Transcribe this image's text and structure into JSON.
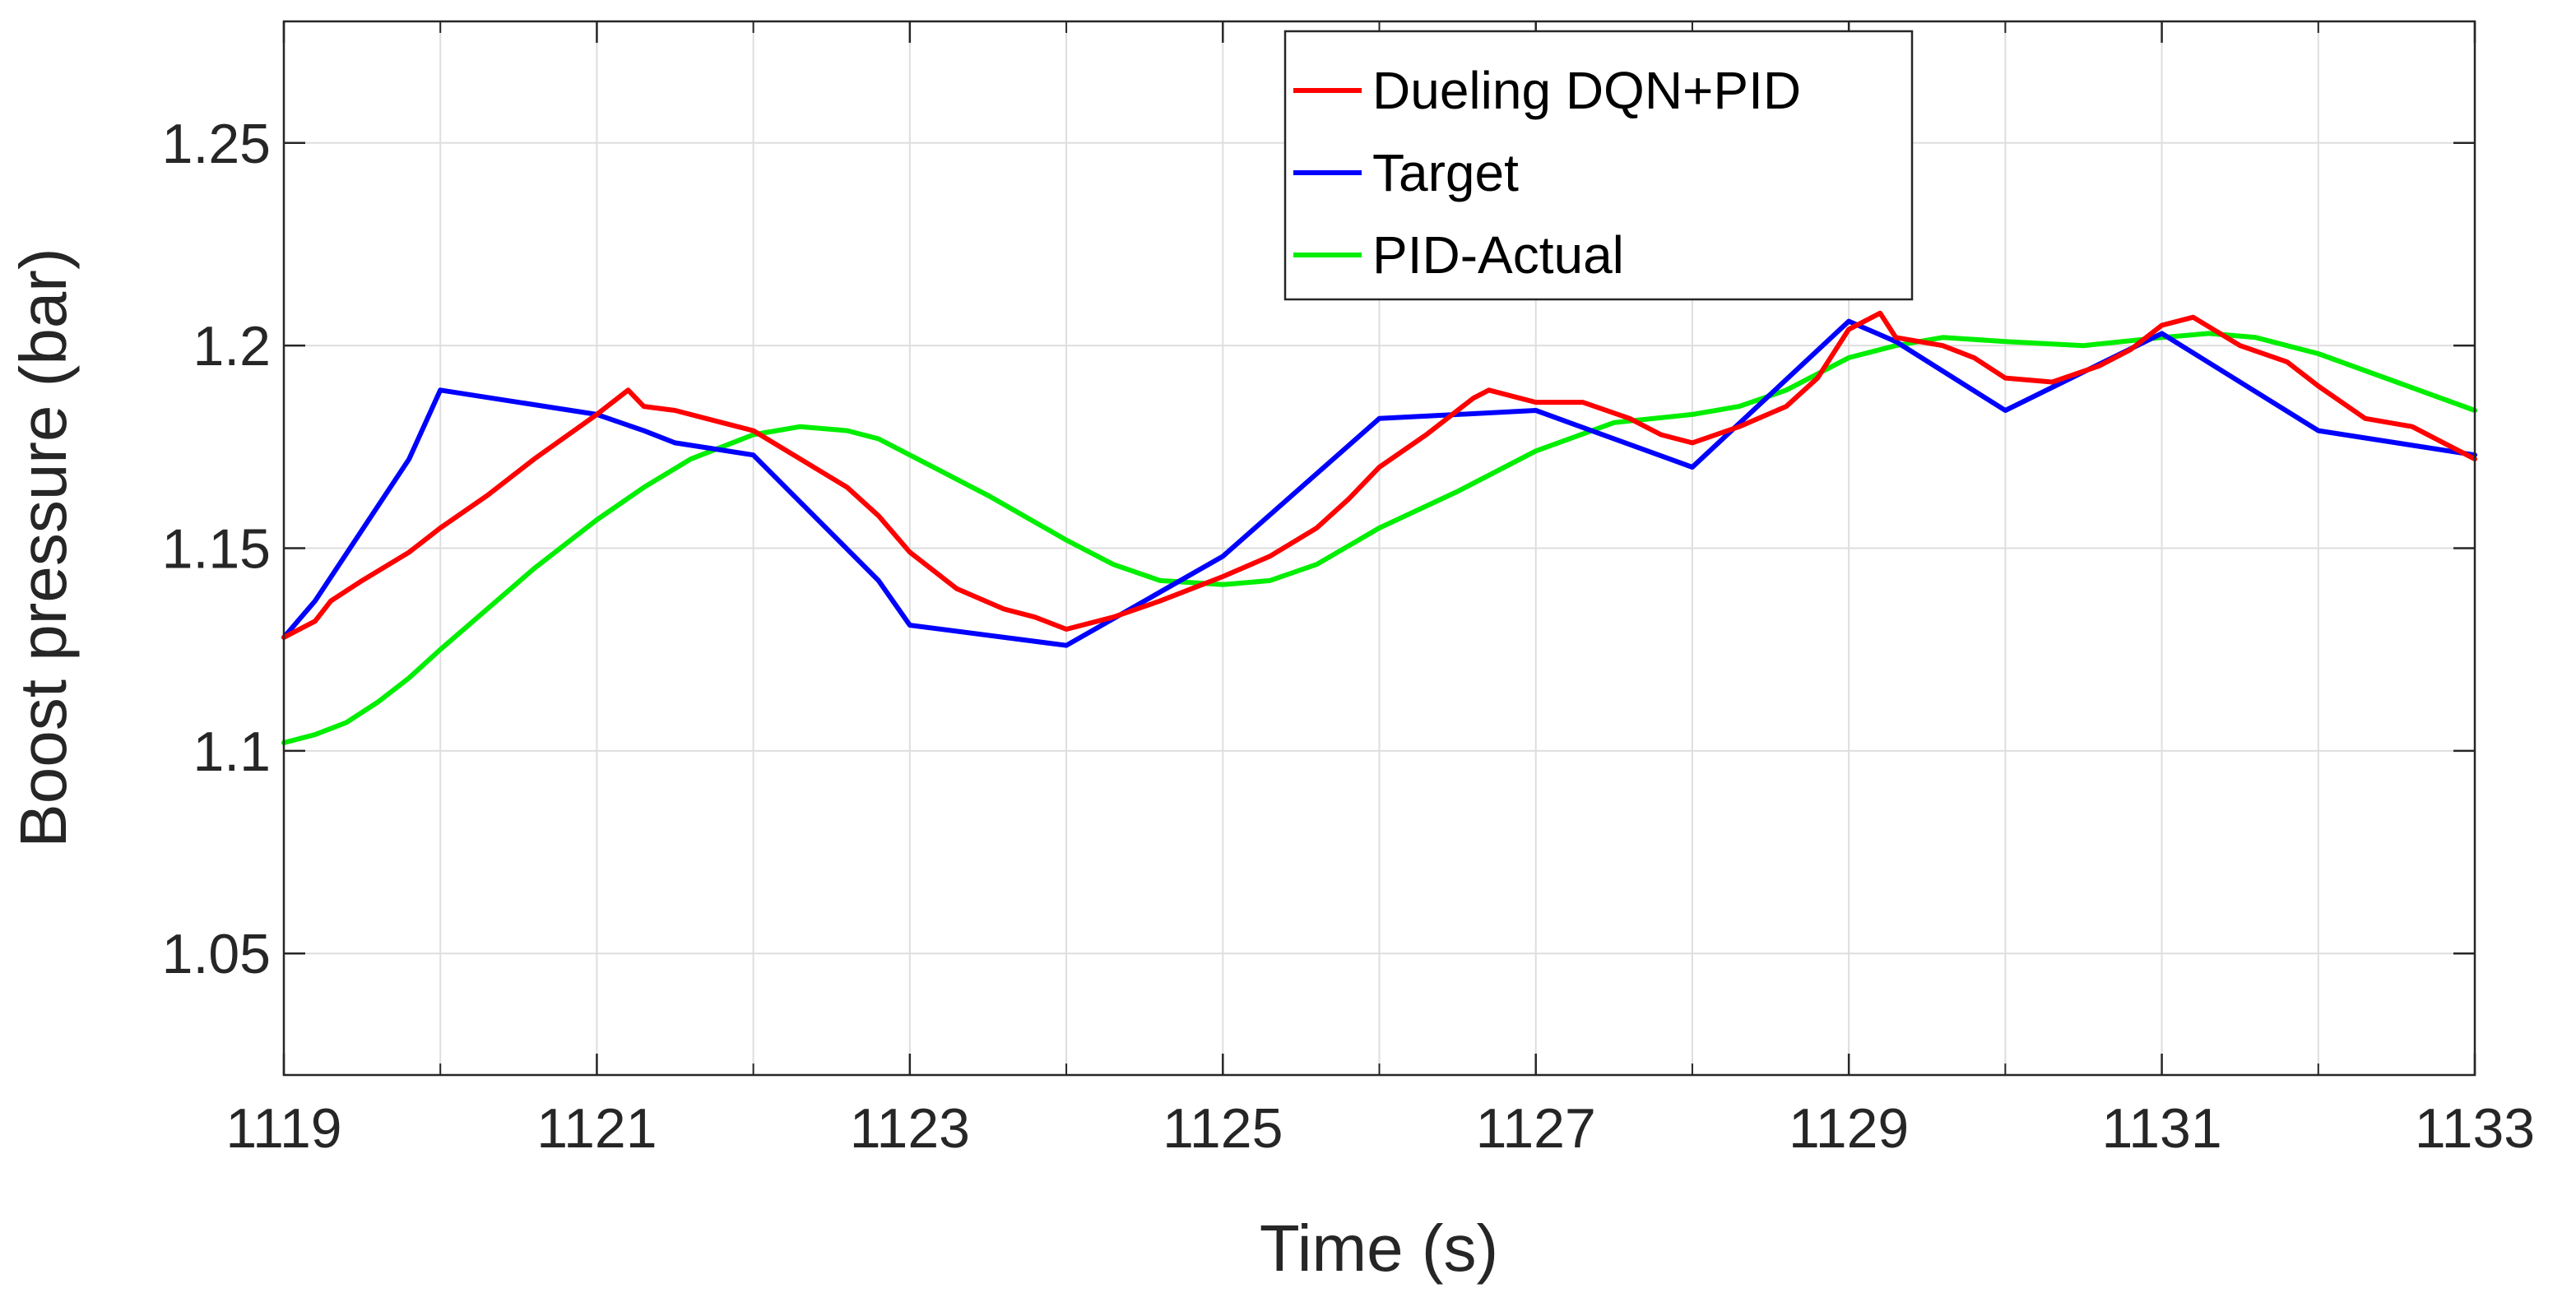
{
  "chart_data": {
    "type": "line",
    "title": "",
    "xlabel": "Time (s)",
    "ylabel": "Boost pressure (bar)",
    "xlim": [
      1119,
      1133
    ],
    "ylim": [
      1.02,
      1.28
    ],
    "xticks": [
      1119,
      1121,
      1123,
      1125,
      1127,
      1129,
      1131,
      1133
    ],
    "xtick_labels": [
      "1119",
      "1121",
      "1123",
      "1125",
      "1127",
      "1129",
      "1131",
      "1133"
    ],
    "yticks": [
      1.05,
      1.1,
      1.15,
      1.2,
      1.25
    ],
    "ytick_labels": [
      "1.05",
      "1.1",
      "1.15",
      "1.2",
      "1.25"
    ],
    "minor_xticks": [
      1120,
      1122,
      1124,
      1126,
      1128,
      1130,
      1132
    ],
    "grid": true,
    "legend_position": "top-center",
    "series": [
      {
        "name": "Dueling DQN+PID",
        "color": "#ff0000",
        "x": [
          1119.0,
          1119.2,
          1119.3,
          1119.5,
          1119.8,
          1120.0,
          1120.3,
          1120.6,
          1121.0,
          1121.2,
          1121.3,
          1121.5,
          1121.8,
          1122.0,
          1122.3,
          1122.6,
          1122.8,
          1123.0,
          1123.3,
          1123.6,
          1123.8,
          1124.0,
          1124.3,
          1124.6,
          1124.8,
          1125.0,
          1125.3,
          1125.6,
          1125.8,
          1126.0,
          1126.3,
          1126.6,
          1126.7,
          1127.0,
          1127.3,
          1127.6,
          1127.8,
          1128.0,
          1128.3,
          1128.6,
          1128.8,
          1129.0,
          1129.2,
          1129.3,
          1129.6,
          1129.8,
          1130.0,
          1130.3,
          1130.6,
          1130.8,
          1131.0,
          1131.2,
          1131.5,
          1131.8,
          1132.0,
          1132.3,
          1132.6,
          1132.8,
          1133.0
        ],
        "values": [
          1.128,
          1.132,
          1.137,
          1.142,
          1.149,
          1.155,
          1.163,
          1.172,
          1.183,
          1.189,
          1.185,
          1.184,
          1.181,
          1.179,
          1.172,
          1.165,
          1.158,
          1.149,
          1.14,
          1.135,
          1.133,
          1.13,
          1.133,
          1.137,
          1.14,
          1.143,
          1.148,
          1.155,
          1.162,
          1.17,
          1.178,
          1.187,
          1.189,
          1.186,
          1.186,
          1.182,
          1.178,
          1.176,
          1.18,
          1.185,
          1.192,
          1.204,
          1.208,
          1.202,
          1.2,
          1.197,
          1.192,
          1.191,
          1.195,
          1.199,
          1.205,
          1.207,
          1.2,
          1.196,
          1.19,
          1.182,
          1.18,
          1.176,
          1.172
        ]
      },
      {
        "name": "Target",
        "color": "#0000ff",
        "x": [
          1119.0,
          1119.2,
          1119.8,
          1120.0,
          1121.0,
          1121.3,
          1121.5,
          1122.0,
          1122.8,
          1123.0,
          1124.0,
          1125.0,
          1126.0,
          1127.0,
          1128.0,
          1129.0,
          1129.3,
          1130.0,
          1131.0,
          1132.0,
          1133.0
        ],
        "values": [
          1.128,
          1.137,
          1.172,
          1.189,
          1.183,
          1.179,
          1.176,
          1.173,
          1.142,
          1.131,
          1.126,
          1.148,
          1.182,
          1.184,
          1.17,
          1.206,
          1.201,
          1.184,
          1.203,
          1.179,
          1.173
        ]
      },
      {
        "name": "PID-Actual",
        "color": "#00ee00",
        "x": [
          1119.0,
          1119.2,
          1119.4,
          1119.6,
          1119.8,
          1120.0,
          1120.3,
          1120.6,
          1121.0,
          1121.3,
          1121.6,
          1122.0,
          1122.3,
          1122.6,
          1122.8,
          1123.0,
          1123.5,
          1124.0,
          1124.3,
          1124.6,
          1125.0,
          1125.3,
          1125.6,
          1126.0,
          1126.5,
          1127.0,
          1127.5,
          1128.0,
          1128.3,
          1128.6,
          1129.0,
          1129.3,
          1129.6,
          1130.0,
          1130.5,
          1131.0,
          1131.3,
          1131.6,
          1132.0,
          1132.5,
          1133.0
        ],
        "values": [
          1.102,
          1.104,
          1.107,
          1.112,
          1.118,
          1.125,
          1.135,
          1.145,
          1.157,
          1.165,
          1.172,
          1.178,
          1.18,
          1.179,
          1.177,
          1.173,
          1.163,
          1.152,
          1.146,
          1.142,
          1.141,
          1.142,
          1.146,
          1.155,
          1.164,
          1.174,
          1.181,
          1.183,
          1.185,
          1.189,
          1.197,
          1.2,
          1.202,
          1.201,
          1.2,
          1.202,
          1.203,
          1.202,
          1.198,
          1.191,
          1.184
        ]
      }
    ]
  }
}
